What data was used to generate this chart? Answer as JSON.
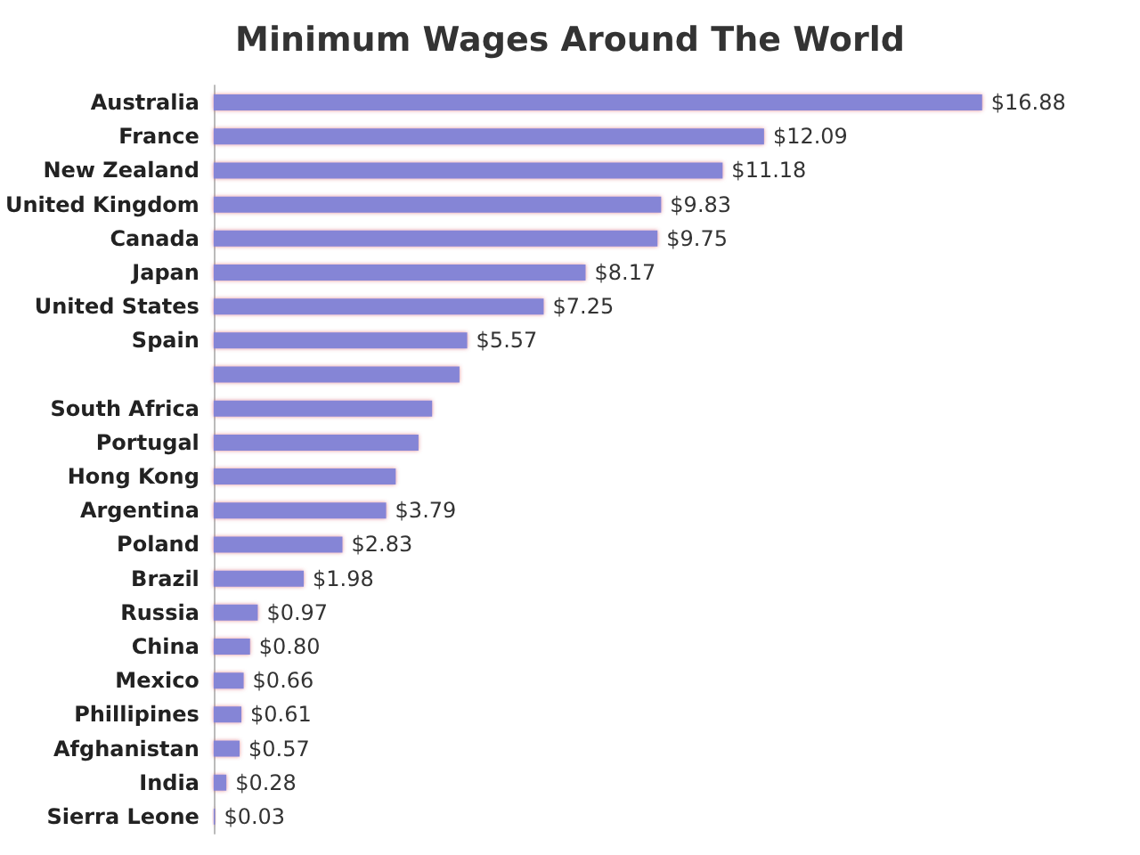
{
  "chart_data": {
    "type": "bar",
    "orientation": "horizontal",
    "title": "Minimum Wages Around The World",
    "categories": [
      "Australia",
      "France",
      "New Zealand",
      "United Kingdom",
      "Canada",
      "Japan",
      "United States",
      "Spain",
      null,
      "South Africa",
      "Portugal",
      "Hong Kong",
      "Argentina",
      "Poland",
      "Brazil",
      "Russia",
      "China",
      "Mexico",
      "Phillipines",
      "Afghanistan",
      "India",
      "Sierra Leone"
    ],
    "values": [
      16.88,
      12.09,
      11.18,
      9.83,
      9.75,
      8.17,
      7.25,
      5.57,
      5.4,
      4.8,
      4.5,
      4.0,
      3.79,
      2.83,
      1.98,
      0.97,
      0.8,
      0.66,
      0.61,
      0.57,
      0.28,
      0.03
    ],
    "value_labels": [
      "$16.88",
      "$12.09",
      "$11.18",
      "$9.83",
      "$9.75",
      "$8.17",
      "$7.25",
      "$5.57",
      null,
      null,
      null,
      null,
      "$3.79",
      "$2.83",
      "$1.98",
      "$0.97",
      "$0.80",
      "$0.66",
      "$0.61",
      "$0.57",
      "$0.28",
      "$0.03"
    ],
    "color": "#8585d6"
  }
}
